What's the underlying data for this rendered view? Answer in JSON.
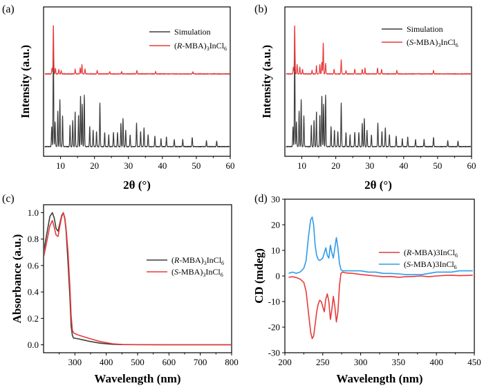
{
  "chart_data": [
    {
      "id": "a",
      "type": "line",
      "panel_label": "(a)",
      "xlabel": "2θ (°)",
      "ylabel": "Intensity (a.u.)",
      "xlim": [
        5,
        60
      ],
      "xticks": [
        10,
        20,
        30,
        40,
        50,
        60
      ],
      "yticks": [],
      "legend": [
        {
          "label": "Simulation",
          "color": "#3c3c3c"
        },
        {
          "label_parts": [
            "(",
            "R",
            "-MBA)",
            "3",
            "InCl",
            "6"
          ],
          "color": "#e8393a"
        }
      ],
      "series": [
        {
          "name": "Simulation",
          "color": "#3c3c3c",
          "baseline": 0.0,
          "peaks": [
            [
              7.4,
              0.17
            ],
            [
              7.9,
              0.9
            ],
            [
              8.4,
              0.21
            ],
            [
              9.2,
              0.3
            ],
            [
              9.8,
              0.4
            ],
            [
              10.6,
              0.26
            ],
            [
              12.8,
              0.18
            ],
            [
              13.6,
              0.22
            ],
            [
              14.3,
              0.3
            ],
            [
              15.3,
              0.27
            ],
            [
              15.9,
              0.44
            ],
            [
              16.4,
              0.36
            ],
            [
              17.0,
              0.44
            ],
            [
              18.6,
              0.17
            ],
            [
              19.6,
              0.14
            ],
            [
              20.6,
              0.13
            ],
            [
              21.6,
              0.37
            ],
            [
              23.0,
              0.12
            ],
            [
              24.2,
              0.1
            ],
            [
              25.6,
              0.12
            ],
            [
              26.8,
              0.12
            ],
            [
              27.8,
              0.2
            ],
            [
              28.4,
              0.24
            ],
            [
              29.2,
              0.14
            ],
            [
              30.5,
              0.1
            ],
            [
              32.4,
              0.2
            ],
            [
              33.6,
              0.13
            ],
            [
              34.6,
              0.16
            ],
            [
              35.8,
              0.1
            ],
            [
              37.8,
              0.09
            ],
            [
              39.6,
              0.07
            ],
            [
              41.2,
              0.08
            ],
            [
              43.5,
              0.06
            ],
            [
              46.0,
              0.06
            ],
            [
              48.8,
              0.08
            ],
            [
              53.0,
              0.05
            ],
            [
              56.0,
              0.05
            ]
          ]
        },
        {
          "name": "(R-MBA)3InCl6",
          "color": "#e8393a",
          "baseline": 0.62,
          "peaks": [
            [
              7.5,
              0.05
            ],
            [
              7.9,
              0.42
            ],
            [
              8.5,
              0.05
            ],
            [
              9.5,
              0.04
            ],
            [
              10.2,
              0.03
            ],
            [
              14.3,
              0.04
            ],
            [
              15.8,
              0.05
            ],
            [
              16.3,
              0.08
            ],
            [
              17.2,
              0.04
            ],
            [
              20.8,
              0.03
            ],
            [
              24.5,
              0.02
            ],
            [
              28.0,
              0.02
            ],
            [
              32.5,
              0.03
            ],
            [
              38.0,
              0.02
            ],
            [
              49.0,
              0.02
            ]
          ]
        }
      ]
    },
    {
      "id": "b",
      "type": "line",
      "panel_label": "(b)",
      "xlabel": "2θ (°)",
      "ylabel": "Intensity (a.u.)",
      "xlim": [
        5,
        60
      ],
      "xticks": [
        10,
        20,
        30,
        40,
        50,
        60
      ],
      "yticks": [],
      "legend": [
        {
          "label": "Simulation",
          "color": "#3c3c3c"
        },
        {
          "label_parts": [
            "(",
            "S",
            "-MBA)",
            "3",
            "InCl",
            "6"
          ],
          "color": "#e8393a"
        }
      ],
      "series": [
        {
          "name": "Simulation",
          "color": "#3c3c3c",
          "baseline": 0.0,
          "peaks": [
            [
              7.4,
              0.17
            ],
            [
              7.9,
              0.9
            ],
            [
              8.4,
              0.21
            ],
            [
              9.2,
              0.3
            ],
            [
              9.8,
              0.4
            ],
            [
              10.6,
              0.26
            ],
            [
              12.8,
              0.18
            ],
            [
              13.6,
              0.22
            ],
            [
              14.3,
              0.3
            ],
            [
              15.3,
              0.27
            ],
            [
              15.9,
              0.44
            ],
            [
              16.4,
              0.36
            ],
            [
              17.0,
              0.44
            ],
            [
              18.6,
              0.17
            ],
            [
              19.6,
              0.14
            ],
            [
              20.6,
              0.13
            ],
            [
              21.6,
              0.37
            ],
            [
              23.0,
              0.12
            ],
            [
              24.2,
              0.1
            ],
            [
              25.6,
              0.12
            ],
            [
              26.8,
              0.12
            ],
            [
              27.8,
              0.2
            ],
            [
              28.4,
              0.24
            ],
            [
              29.2,
              0.14
            ],
            [
              30.5,
              0.1
            ],
            [
              32.4,
              0.2
            ],
            [
              33.6,
              0.13
            ],
            [
              34.6,
              0.16
            ],
            [
              35.8,
              0.1
            ],
            [
              37.8,
              0.09
            ],
            [
              39.6,
              0.07
            ],
            [
              41.2,
              0.08
            ],
            [
              43.5,
              0.06
            ],
            [
              46.0,
              0.06
            ],
            [
              48.8,
              0.08
            ],
            [
              53.0,
              0.05
            ],
            [
              56.0,
              0.05
            ]
          ]
        },
        {
          "name": "(S-MBA)3InCl6",
          "color": "#e8393a",
          "baseline": 0.62,
          "peaks": [
            [
              7.5,
              0.06
            ],
            [
              7.9,
              0.42
            ],
            [
              8.6,
              0.08
            ],
            [
              9.4,
              0.06
            ],
            [
              10.2,
              0.04
            ],
            [
              13.0,
              0.03
            ],
            [
              14.3,
              0.07
            ],
            [
              15.3,
              0.08
            ],
            [
              15.9,
              0.1
            ],
            [
              16.3,
              0.27
            ],
            [
              17.0,
              0.09
            ],
            [
              19.5,
              0.04
            ],
            [
              21.6,
              0.12
            ],
            [
              23.0,
              0.03
            ],
            [
              25.6,
              0.04
            ],
            [
              27.8,
              0.04
            ],
            [
              28.6,
              0.05
            ],
            [
              32.3,
              0.05
            ],
            [
              33.5,
              0.04
            ],
            [
              38.0,
              0.03
            ],
            [
              48.8,
              0.03
            ]
          ]
        }
      ]
    },
    {
      "id": "c",
      "type": "line",
      "panel_label": "(c)",
      "xlabel": "Wavelength (nm)",
      "ylabel": "Absorbance (a.u.)",
      "xlim": [
        200,
        800
      ],
      "ylim": [
        -0.06,
        1.06
      ],
      "xticks": [
        300,
        400,
        500,
        600,
        700,
        800
      ],
      "yticks": [
        0.0,
        0.2,
        0.4,
        0.6,
        0.8,
        1.0
      ],
      "ytick_labels": [
        "0.0",
        "0.2",
        "0.4",
        "0.6",
        "0.8",
        "1.0"
      ],
      "legend": [
        {
          "label_parts": [
            "(",
            "R",
            "-MBA)",
            "3",
            "InCl",
            "6"
          ],
          "color": "#3c3c3c"
        },
        {
          "label_parts": [
            "(",
            "S",
            "-MBA)",
            "3",
            "InCl",
            "6"
          ],
          "color": "#e8393a"
        }
      ],
      "series": [
        {
          "name": "(R-MBA)3InCl6",
          "color": "#3c3c3c",
          "x": [
            200,
            212,
            220,
            228,
            234,
            240,
            246,
            252,
            258,
            263,
            268,
            272,
            278,
            284,
            288,
            292,
            296,
            300,
            310,
            330,
            350,
            380,
            420,
            450,
            500,
            600,
            700,
            800
          ],
          "y": [
            0.7,
            0.86,
            0.97,
            1.0,
            0.96,
            0.88,
            0.86,
            0.92,
            0.98,
            1.0,
            0.95,
            0.86,
            0.62,
            0.36,
            0.14,
            0.07,
            0.05,
            0.05,
            0.045,
            0.035,
            0.025,
            0.012,
            0.004,
            0.002,
            0.001,
            0.0,
            0.0,
            0.0
          ]
        },
        {
          "name": "(S-MBA)3InCl6",
          "color": "#e8393a",
          "x": [
            200,
            212,
            220,
            228,
            234,
            240,
            246,
            252,
            258,
            263,
            268,
            272,
            278,
            284,
            288,
            292,
            296,
            300,
            310,
            330,
            350,
            380,
            420,
            450,
            500,
            600,
            700,
            800
          ],
          "y": [
            0.66,
            0.8,
            0.9,
            0.94,
            0.89,
            0.83,
            0.82,
            0.9,
            0.97,
            1.0,
            0.96,
            0.88,
            0.7,
            0.44,
            0.22,
            0.11,
            0.09,
            0.085,
            0.075,
            0.06,
            0.045,
            0.025,
            0.008,
            0.003,
            0.001,
            0.0,
            0.0,
            0.0
          ]
        }
      ]
    },
    {
      "id": "d",
      "type": "line",
      "panel_label": "(d)",
      "xlabel": "Wavelength (nm)",
      "ylabel": "CD (mdeg)",
      "xlim": [
        200,
        450
      ],
      "ylim": [
        -30,
        30
      ],
      "xticks": [
        200,
        250,
        300,
        350,
        400,
        450
      ],
      "yticks": [
        -30,
        -20,
        -10,
        0,
        10,
        20,
        30
      ],
      "ytick_labels": [
        "-30",
        "-20",
        "-10",
        "0",
        "10",
        "20",
        "30"
      ],
      "legend": [
        {
          "label_parts": [
            "(",
            "R",
            "-MBA)3InCl",
            "",
            "",
            "6"
          ],
          "color": "#e8393a"
        },
        {
          "label_parts": [
            "(",
            "S",
            "-MBA)3InCl",
            "",
            "",
            "6"
          ],
          "color": "#2c9be8"
        }
      ],
      "series": [
        {
          "name": "(R-MBA)3InCl6",
          "color": "#e8393a",
          "x": [
            205,
            210,
            215,
            220,
            225,
            228,
            231,
            234,
            236,
            238,
            240,
            242,
            244,
            246,
            248,
            250,
            252,
            254,
            256,
            258,
            260,
            262,
            264,
            266,
            268,
            270,
            272,
            274,
            276,
            280,
            290,
            300,
            310,
            320,
            330,
            340,
            350,
            360,
            370,
            380,
            390,
            400,
            410,
            420,
            430,
            440,
            448
          ],
          "y": [
            -0.5,
            -0.3,
            -0.6,
            -1.2,
            -2.5,
            -6,
            -14,
            -22,
            -24.5,
            -23.5,
            -19,
            -14,
            -11,
            -9.5,
            -10,
            -12,
            -14,
            -9,
            -7,
            -10,
            -17,
            -13,
            -8,
            -12,
            -18,
            -14,
            -4,
            1,
            1.5,
            1.2,
            1,
            0.6,
            0.3,
            0,
            -0.3,
            -0.2,
            -0.5,
            -0.3,
            -0.2,
            0,
            -0.3,
            0,
            0.2,
            0.3,
            0.1,
            0.2,
            0.3
          ]
        },
        {
          "name": "(S-MBA)3InCl6",
          "color": "#2c9be8",
          "x": [
            205,
            210,
            215,
            220,
            225,
            228,
            231,
            234,
            236,
            238,
            240,
            242,
            244,
            246,
            248,
            250,
            252,
            254,
            256,
            258,
            260,
            262,
            264,
            266,
            268,
            270,
            272,
            274,
            276,
            280,
            290,
            300,
            310,
            320,
            330,
            340,
            350,
            360,
            370,
            380,
            390,
            400,
            410,
            420,
            430,
            440,
            448
          ],
          "y": [
            1,
            1.5,
            1,
            1.5,
            3,
            6,
            15,
            22,
            23,
            20,
            12,
            8,
            6.5,
            6,
            6.5,
            7,
            9,
            11,
            8,
            7,
            12,
            9,
            7,
            11,
            15,
            11,
            5,
            2.5,
            2,
            2,
            2,
            2,
            1.5,
            1.5,
            1,
            1,
            0.8,
            0.5,
            0.5,
            0.5,
            1,
            1.5,
            1.5,
            1.5,
            2,
            2,
            2
          ]
        }
      ]
    }
  ]
}
